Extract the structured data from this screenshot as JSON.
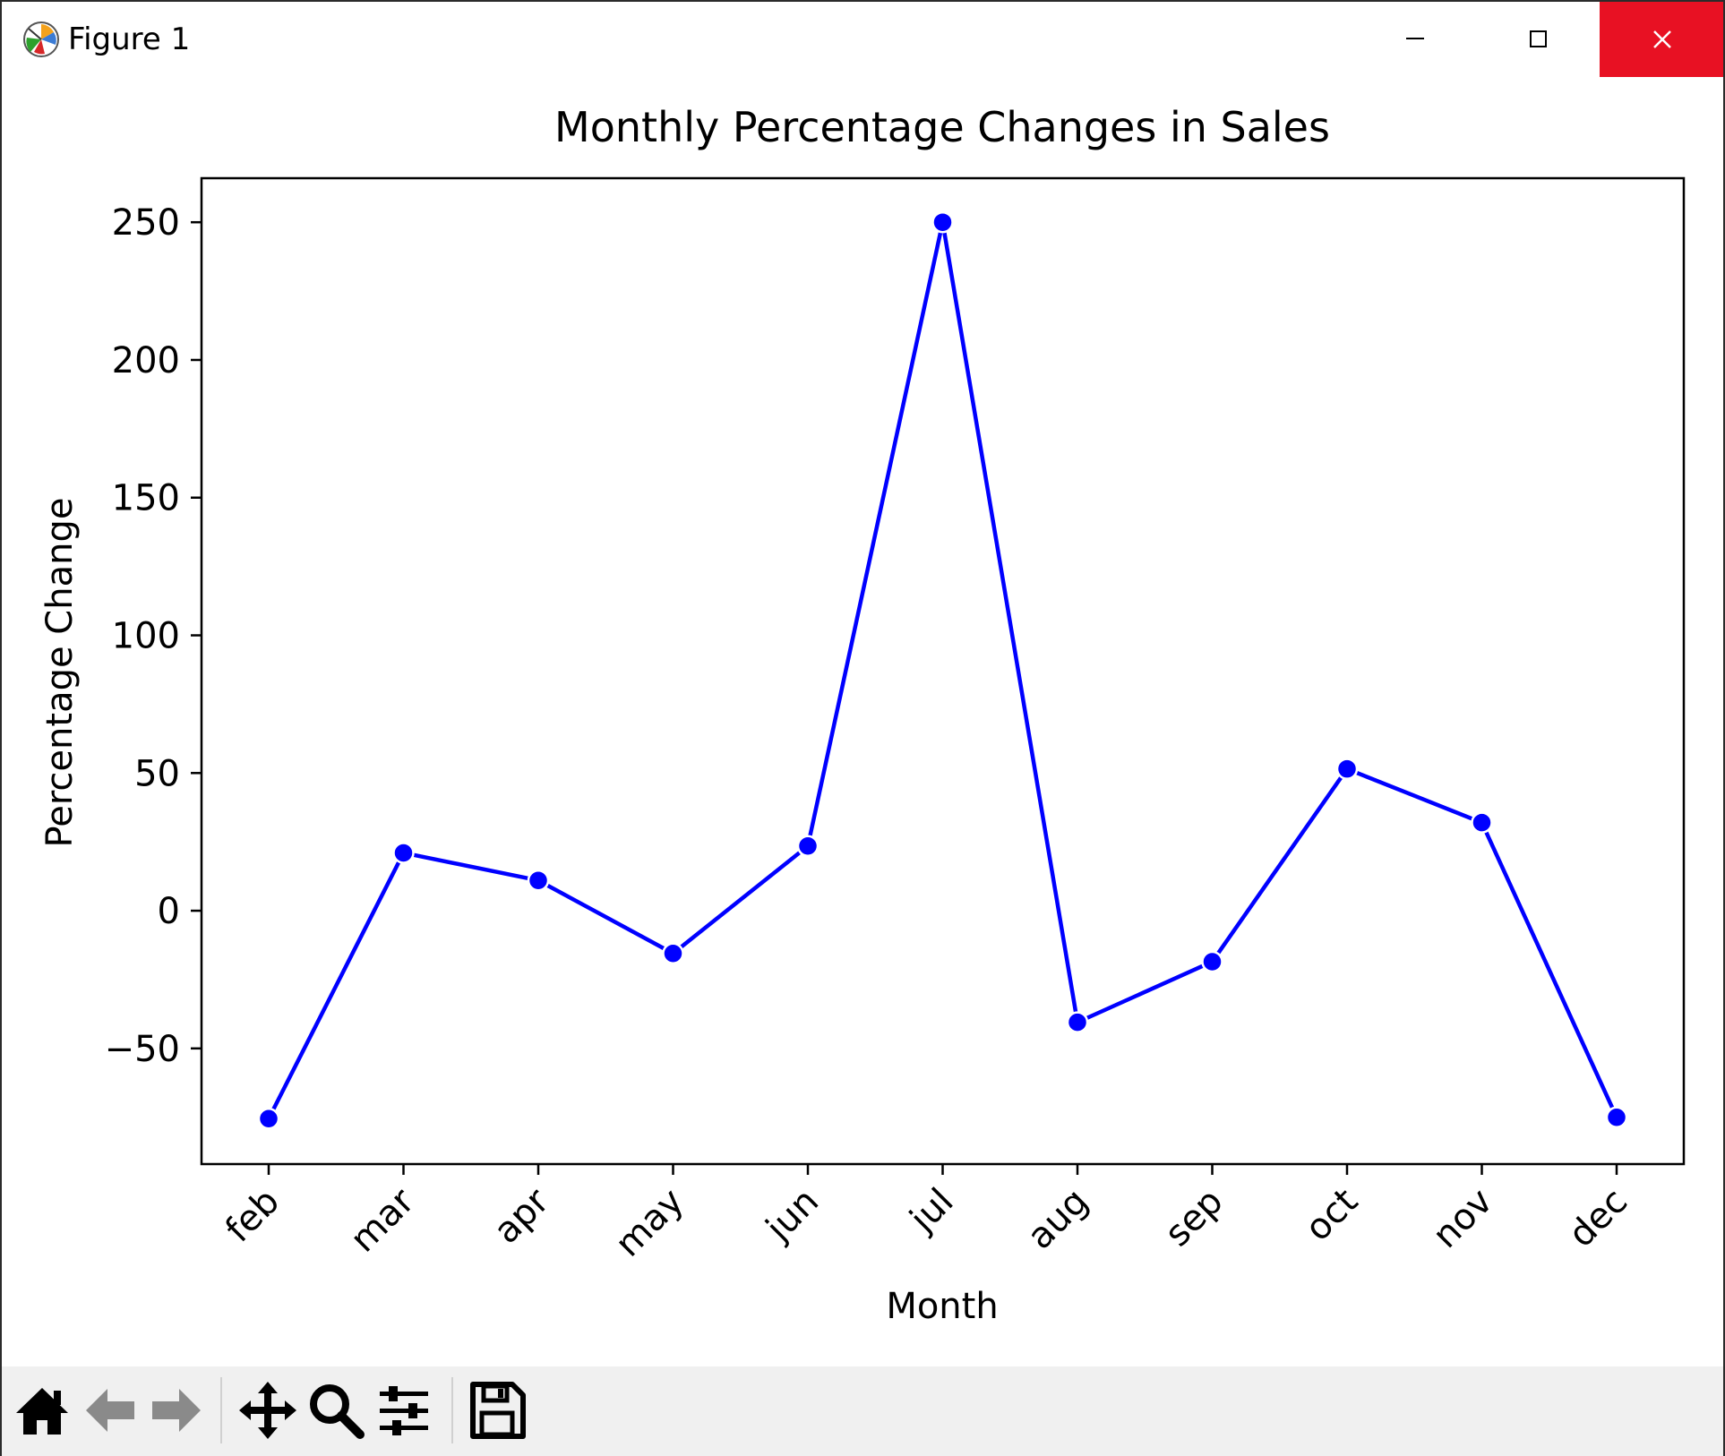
{
  "window": {
    "title": "Figure 1",
    "accent_close": "#e81123"
  },
  "toolbar": {
    "icons": [
      "home-icon",
      "back-arrow-icon",
      "forward-arrow-icon",
      "pan-icon",
      "zoom-icon",
      "configure-subplots-icon",
      "save-icon"
    ]
  },
  "chart_data": {
    "type": "line",
    "title": "Monthly Percentage Changes in Sales",
    "xlabel": "Month",
    "ylabel": "Percentage Change",
    "categories": [
      "feb",
      "mar",
      "apr",
      "may",
      "jun",
      "jul",
      "aug",
      "sep",
      "oct",
      "nov",
      "dec"
    ],
    "series": [
      {
        "values": [
          -75.5,
          21,
          11,
          -15.5,
          23.5,
          250,
          -40.5,
          -18.5,
          51.5,
          32,
          -75
        ],
        "color": "#0000ff"
      }
    ],
    "ylim": [
      -92,
      266
    ],
    "yticks": [
      -50,
      0,
      50,
      100,
      150,
      200,
      250
    ],
    "ytick_labels": [
      "−50",
      "0",
      "50",
      "100",
      "150",
      "200",
      "250"
    ],
    "grid": false,
    "legend": "none"
  }
}
